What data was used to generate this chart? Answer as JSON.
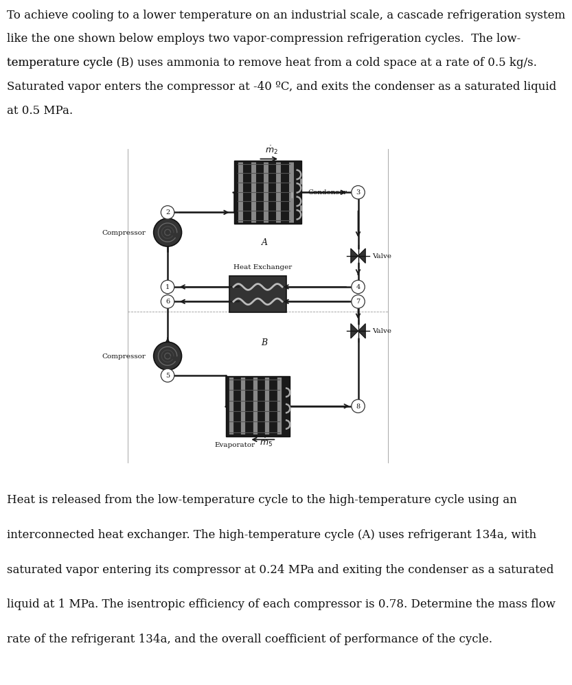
{
  "bg_color": "#ffffff",
  "text_color": "#111111",
  "font_size_body": 12.0,
  "font_size_label": 7.5,
  "font_size_node": 7.0,
  "font_size_cycle": 9.0,
  "p1_lines": [
    "To achieve cooling to a lower temperature on an industrial scale, a cascade refrigeration system",
    "like the one shown below employs two vapor-compression refrigeration cycles.  The low-",
    "temperature cycle (B) uses ammonia to remove heat from a cold space at a rate of 0.5 kg/s.",
    "Saturated vapor enters the compressor at -40 ºC, and exits the condenser as a saturated liquid",
    "at 0.5 MPa."
  ],
  "p1_italic_char": "B",
  "p2_lines": [
    "Heat is released from the low-temperature cycle to the high-temperature cycle using an",
    "interconnected heat exchanger. The high-temperature cycle (A) uses refrigerant 134a, with",
    "saturated vapor entering its compressor at 0.24 MPa and exiting the condenser as a saturated",
    "liquid at 1 MPa. The isentropic efficiency of each compressor is 0.78. Determine the mass flow",
    "rate of the refrigerant 134a, and the overall coefficient of performance of the cycle."
  ],
  "p2_italic_char": "A",
  "label_condenser": "Condenser",
  "label_compressor": "Compressor",
  "label_valve": "Valve",
  "label_hx": "Heat Exchanger",
  "label_evaporator": "Evaporator",
  "label_A": "A",
  "label_B": "B",
  "pipe_color": "#1a1a1a",
  "component_dark": "#2a2a2a",
  "component_mid": "#555555",
  "component_light": "#aaaaaa"
}
